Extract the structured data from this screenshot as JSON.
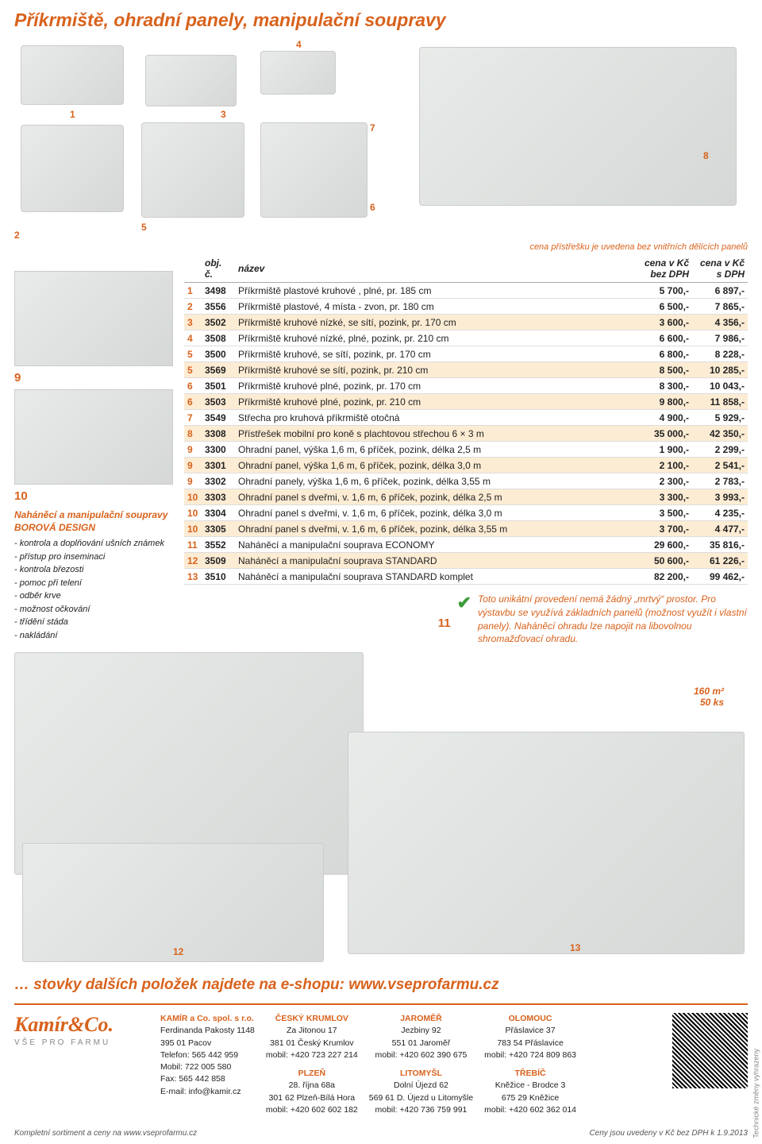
{
  "title": "Příkrmiště, ohradní panely, manipulační soupravy",
  "note_right": "cena přístřešku je uvedena bez vnitřních dělících panelů",
  "table": {
    "headers": {
      "obj": "obj. č.",
      "nazev": "název",
      "bez": "cena v Kč bez DPH",
      "s": "cena v Kč s DPH"
    },
    "rows": [
      {
        "n": "1",
        "c": "3498",
        "d": "Příkrmiště plastové kruhové , plné, pr. 185 cm",
        "p1": "5 700,-",
        "p2": "6 897,-",
        "hl": false
      },
      {
        "n": "2",
        "c": "3556",
        "d": "Příkrmiště plastové, 4 místa - zvon, pr. 180 cm",
        "p1": "6 500,-",
        "p2": "7 865,-",
        "hl": false
      },
      {
        "n": "3",
        "c": "3502",
        "d": "Příkrmiště kruhové nízké, se sítí, pozink, pr. 170 cm",
        "p1": "3 600,-",
        "p2": "4 356,-",
        "hl": true
      },
      {
        "n": "4",
        "c": "3508",
        "d": "Příkrmiště kruhové nízké, plné, pozink, pr. 210 cm",
        "p1": "6 600,-",
        "p2": "7 986,-",
        "hl": false
      },
      {
        "n": "5",
        "c": "3500",
        "d": "Příkrmiště kruhové, se sítí, pozink, pr. 170 cm",
        "p1": "6 800,-",
        "p2": "8 228,-",
        "hl": false
      },
      {
        "n": "5",
        "c": "3569",
        "d": "Příkrmiště kruhové se sítí, pozink, pr. 210 cm",
        "p1": "8 500,-",
        "p2": "10 285,-",
        "hl": true
      },
      {
        "n": "6",
        "c": "3501",
        "d": "Příkrmiště kruhové plné, pozink, pr. 170 cm",
        "p1": "8 300,-",
        "p2": "10 043,-",
        "hl": false
      },
      {
        "n": "6",
        "c": "3503",
        "d": "Příkrmiště kruhové plné, pozink, pr. 210 cm",
        "p1": "9 800,-",
        "p2": "11 858,-",
        "hl": true
      },
      {
        "n": "7",
        "c": "3549",
        "d": "Střecha pro kruhová příkrmiště otočná",
        "p1": "4 900,-",
        "p2": "5 929,-",
        "hl": false
      },
      {
        "n": "8",
        "c": "3308",
        "d": "Přístřešek mobilní pro koně s plachtovou střechou 6 × 3 m",
        "p1": "35 000,-",
        "p2": "42 350,-",
        "hl": true
      },
      {
        "n": "9",
        "c": "3300",
        "d": "Ohradní panel, výška 1,6 m, 6 příček, pozink, délka 2,5 m",
        "p1": "1 900,-",
        "p2": "2 299,-",
        "hl": false
      },
      {
        "n": "9",
        "c": "3301",
        "d": "Ohradní panel, výška 1,6 m, 6 příček, pozink, délka 3,0 m",
        "p1": "2 100,-",
        "p2": "2 541,-",
        "hl": true
      },
      {
        "n": "9",
        "c": "3302",
        "d": "Ohradní panely, výška 1,6 m, 6 příček, pozink, délka 3,55 m",
        "p1": "2 300,-",
        "p2": "2 783,-",
        "hl": false
      },
      {
        "n": "10",
        "c": "3303",
        "d": "Ohradní panel s dveřmi, v. 1,6 m, 6 příček, pozink, délka 2,5 m",
        "p1": "3 300,-",
        "p2": "3 993,-",
        "hl": true
      },
      {
        "n": "10",
        "c": "3304",
        "d": "Ohradní panel s dveřmi, v. 1,6 m, 6 příček, pozink, délka 3,0 m",
        "p1": "3 500,-",
        "p2": "4 235,-",
        "hl": false
      },
      {
        "n": "10",
        "c": "3305",
        "d": "Ohradní panel s dveřmi, v. 1,6 m, 6 příček, pozink, délka 3,55 m",
        "p1": "3 700,-",
        "p2": "4 477,-",
        "hl": true
      },
      {
        "n": "11",
        "c": "3552",
        "d": "Naháněcí a manipulační souprava ECONOMY",
        "p1": "29 600,-",
        "p2": "35 816,-",
        "hl": false
      },
      {
        "n": "12",
        "c": "3509",
        "d": "Naháněcí a manipulační souprava STANDARD",
        "p1": "50 600,-",
        "p2": "61 226,-",
        "hl": true
      },
      {
        "n": "13",
        "c": "3510",
        "d": "Naháněcí a manipulační souprava STANDARD komplet",
        "p1": "82 200,-",
        "p2": "99 462,-",
        "hl": false
      }
    ]
  },
  "design": {
    "heading": "Naháněcí a manipulační soupravy BOROVÁ DESIGN",
    "items": [
      "- kontrola a doplňování ušních známek",
      "- přístup pro inseminaci",
      "- kontrola březosti",
      "- pomoc při telení",
      "- odběr krve",
      "- možnost očkování",
      "- třídění stáda",
      "- nakládání"
    ]
  },
  "tip": "Toto unikátní provedení nemá žádný „mrtvý“ prostor. Pro výstavbu se využívá základních panelů (možnost využít i vlastní panely). Naháněcí ohradu lze napojit na libovolnou shromažďovací ohradu.",
  "area": "160 m²\n50 ks",
  "img_labels": {
    "n1": "1",
    "n2": "2",
    "n3": "3",
    "n4": "4",
    "n5": "5",
    "n6": "6",
    "n7": "7",
    "n8": "8",
    "n9": "9",
    "n10": "10",
    "n11": "11",
    "n12": "12",
    "n13": "13"
  },
  "eshop": {
    "text": "… stovky dalších položek najdete na e-shopu: ",
    "link": "www.vseprofarmu.cz"
  },
  "footer": {
    "logo": "Kamír&Co.",
    "tagline": "VŠE PRO FARMU",
    "company": {
      "h": "KAMÍR a Co. spol. s r.o.",
      "lines": [
        "Ferdinanda Pakosty 1148",
        "395 01 Pacov",
        "Telefon: 565 442 959",
        "Mobil:    722 005 580",
        "Fax:        565 442 858",
        "E-mail:  info@kamir.cz"
      ]
    },
    "branches": [
      {
        "h": "ČESKÝ KRUMLOV",
        "lines": [
          "Za Jitonou 17",
          "381 01 Český Krumlov",
          "mobil: +420 723 227 214"
        ]
      },
      {
        "h": "PLZEŇ",
        "lines": [
          "28. října 68a",
          "301 62 Plzeň-Bílá Hora",
          "mobil: +420 602 602 182"
        ]
      },
      {
        "h": "JAROMĚŘ",
        "lines": [
          "Jezbiny 92",
          "551 01 Jaroměř",
          "mobil: +420 602 390 675"
        ]
      },
      {
        "h": "LITOMYŠL",
        "lines": [
          "Dolní Újezd 62",
          "569 61 D. Újezd u Litomyšle",
          "mobil: +420 736 759 991"
        ]
      },
      {
        "h": "OLOMOUC",
        "lines": [
          "Přáslavice 37",
          "783 54 Přáslavice",
          "mobil: +420 724 809 863"
        ]
      },
      {
        "h": "TŘEBÍČ",
        "lines": [
          "Kněžice - Brodce 3",
          "675 29 Kněžice",
          "mobil: +420 602 362 014"
        ]
      }
    ]
  },
  "side": "Technické změny vyhrazeny",
  "bottom": {
    "left": "Kompletní sortiment a ceny na www.vseprofarmu.cz",
    "right": "Ceny jsou uvedeny v Kč bez DPH k 1.9.2013"
  }
}
